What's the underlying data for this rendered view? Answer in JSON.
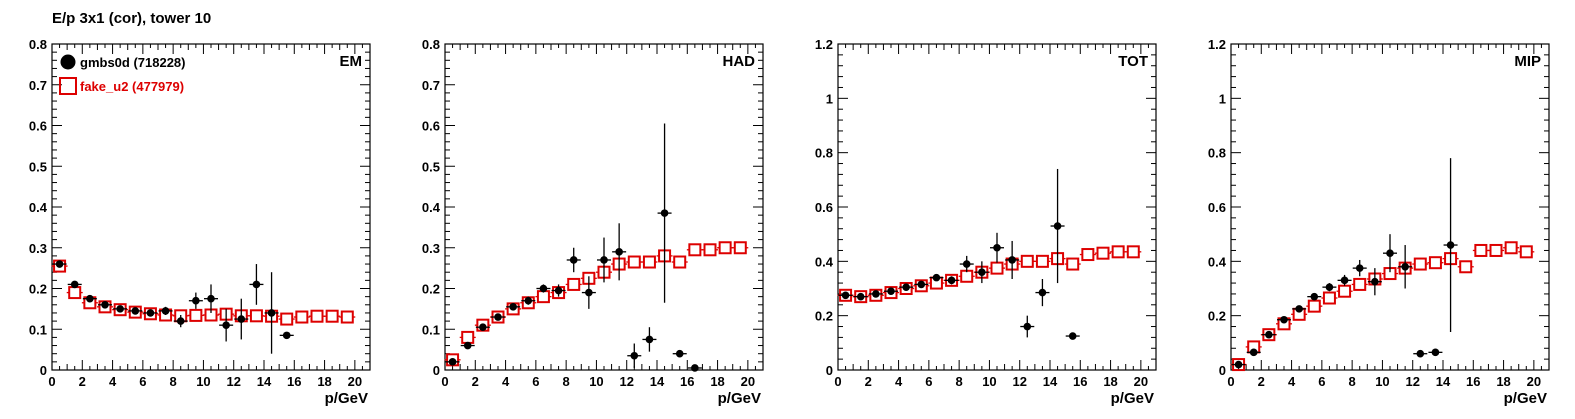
{
  "page": {
    "title": "E/p 3x1 (cor), tower 10"
  },
  "colors": {
    "data": "#000000",
    "mc": "#dd0000",
    "frame": "#000000",
    "background": "#ffffff"
  },
  "chart_data": [
    {
      "type": "scatter",
      "panel_label": "EM",
      "xlabel": "p/GeV",
      "xlim": [
        0,
        21
      ],
      "ylim": [
        0,
        0.8
      ],
      "xticks": [
        0,
        2,
        4,
        6,
        8,
        10,
        12,
        14,
        16,
        18,
        20
      ],
      "yticks": [
        0,
        0.1,
        0.2,
        0.3,
        0.4,
        0.5,
        0.6,
        0.7,
        0.8
      ],
      "ytick_labels": [
        "0",
        "0.1",
        "0.2",
        "0.3",
        "0.4",
        "0.5",
        "0.6",
        "0.7",
        "0.8"
      ],
      "legend": [
        {
          "label": "gmbs0d (718228)",
          "marker": "filled-circle",
          "color": "#000000"
        },
        {
          "label": "fake_u2 (477979)",
          "marker": "open-square",
          "color": "#dd0000"
        }
      ],
      "series": [
        {
          "name": "gmbs0d (718228)",
          "marker": "filled-circle",
          "color": "#000000",
          "x": [
            0.5,
            1.5,
            2.5,
            3.5,
            4.5,
            5.5,
            6.5,
            7.5,
            8.5,
            9.5,
            10.5,
            11.5,
            12.5,
            13.5,
            14.5,
            15.5
          ],
          "y": [
            0.26,
            0.21,
            0.175,
            0.16,
            0.15,
            0.145,
            0.14,
            0.145,
            0.12,
            0.17,
            0.175,
            0.11,
            0.125,
            0.21,
            0.14,
            0.085
          ],
          "yerr": [
            0.005,
            0.005,
            0.005,
            0.005,
            0.005,
            0.006,
            0.008,
            0.01,
            0.015,
            0.02,
            0.035,
            0.04,
            0.05,
            0.05,
            0.1,
            0.0
          ]
        },
        {
          "name": "fake_u2 (477979)",
          "marker": "open-square",
          "color": "#dd0000",
          "x": [
            0.5,
            1.5,
            2.5,
            3.5,
            4.5,
            5.5,
            6.5,
            7.5,
            8.5,
            9.5,
            10.5,
            11.5,
            12.5,
            13.5,
            14.5,
            15.5,
            16.5,
            17.5,
            18.5,
            19.5
          ],
          "y": [
            0.255,
            0.19,
            0.165,
            0.155,
            0.148,
            0.142,
            0.138,
            0.135,
            0.133,
            0.134,
            0.135,
            0.137,
            0.133,
            0.133,
            0.132,
            0.125,
            0.13,
            0.132,
            0.132,
            0.13
          ]
        }
      ]
    },
    {
      "type": "scatter",
      "panel_label": "HAD",
      "xlabel": "p/GeV",
      "xlim": [
        0,
        21
      ],
      "ylim": [
        0,
        0.8
      ],
      "xticks": [
        0,
        2,
        4,
        6,
        8,
        10,
        12,
        14,
        16,
        18,
        20
      ],
      "yticks": [
        0,
        0.1,
        0.2,
        0.3,
        0.4,
        0.5,
        0.6,
        0.7,
        0.8
      ],
      "ytick_labels": [
        "0",
        "0.1",
        "0.2",
        "0.3",
        "0.4",
        "0.5",
        "0.6",
        "0.7",
        "0.8"
      ],
      "series": [
        {
          "name": "gmbs0d (718228)",
          "marker": "filled-circle",
          "color": "#000000",
          "x": [
            0.5,
            1.5,
            2.5,
            3.5,
            4.5,
            5.5,
            6.5,
            7.5,
            8.5,
            9.5,
            10.5,
            11.5,
            12.5,
            13.5,
            14.5,
            15.5,
            16.5
          ],
          "y": [
            0.02,
            0.06,
            0.105,
            0.13,
            0.155,
            0.17,
            0.2,
            0.195,
            0.27,
            0.19,
            0.27,
            0.29,
            0.035,
            0.075,
            0.385,
            0.04,
            0.005
          ],
          "yerr": [
            0.005,
            0.005,
            0.006,
            0.006,
            0.008,
            0.01,
            0.01,
            0.015,
            0.03,
            0.04,
            0.055,
            0.07,
            0.03,
            0.03,
            0.22,
            0.0,
            0.0
          ]
        },
        {
          "name": "fake_u2 (477979)",
          "marker": "open-square",
          "color": "#dd0000",
          "x": [
            0.5,
            1.5,
            2.5,
            3.5,
            4.5,
            5.5,
            6.5,
            7.5,
            8.5,
            9.5,
            10.5,
            11.5,
            12.5,
            13.5,
            14.5,
            15.5,
            16.5,
            17.5,
            18.5,
            19.5
          ],
          "y": [
            0.025,
            0.08,
            0.11,
            0.13,
            0.15,
            0.165,
            0.18,
            0.19,
            0.21,
            0.225,
            0.24,
            0.26,
            0.265,
            0.265,
            0.28,
            0.265,
            0.295,
            0.295,
            0.3,
            0.3
          ]
        }
      ]
    },
    {
      "type": "scatter",
      "panel_label": "TOT",
      "xlabel": "p/GeV",
      "xlim": [
        0,
        21
      ],
      "ylim": [
        0,
        1.2
      ],
      "xticks": [
        0,
        2,
        4,
        6,
        8,
        10,
        12,
        14,
        16,
        18,
        20
      ],
      "yticks": [
        0,
        0.2,
        0.4,
        0.6,
        0.8,
        1.0,
        1.2
      ],
      "ytick_labels": [
        "0",
        "0.2",
        "0.4",
        "0.6",
        "0.8",
        "1",
        "1.2"
      ],
      "series": [
        {
          "name": "gmbs0d (718228)",
          "marker": "filled-circle",
          "color": "#000000",
          "x": [
            0.5,
            1.5,
            2.5,
            3.5,
            4.5,
            5.5,
            6.5,
            7.5,
            8.5,
            9.5,
            10.5,
            11.5,
            12.5,
            13.5,
            14.5,
            15.5
          ],
          "y": [
            0.275,
            0.27,
            0.28,
            0.29,
            0.305,
            0.315,
            0.34,
            0.33,
            0.39,
            0.36,
            0.45,
            0.405,
            0.16,
            0.285,
            0.53,
            0.125
          ],
          "yerr": [
            0.005,
            0.005,
            0.006,
            0.006,
            0.008,
            0.01,
            0.01,
            0.015,
            0.03,
            0.04,
            0.055,
            0.07,
            0.04,
            0.05,
            0.21,
            0.0
          ]
        },
        {
          "name": "fake_u2 (477979)",
          "marker": "open-square",
          "color": "#dd0000",
          "x": [
            0.5,
            1.5,
            2.5,
            3.5,
            4.5,
            5.5,
            6.5,
            7.5,
            8.5,
            9.5,
            10.5,
            11.5,
            12.5,
            13.5,
            14.5,
            15.5,
            16.5,
            17.5,
            18.5,
            19.5
          ],
          "y": [
            0.275,
            0.27,
            0.275,
            0.285,
            0.3,
            0.31,
            0.32,
            0.33,
            0.345,
            0.36,
            0.375,
            0.39,
            0.4,
            0.4,
            0.41,
            0.39,
            0.425,
            0.43,
            0.435,
            0.435
          ]
        }
      ]
    },
    {
      "type": "scatter",
      "panel_label": "MIP",
      "xlabel": "p/GeV",
      "xlim": [
        0,
        21
      ],
      "ylim": [
        0,
        1.2
      ],
      "xticks": [
        0,
        2,
        4,
        6,
        8,
        10,
        12,
        14,
        16,
        18,
        20
      ],
      "yticks": [
        0,
        0.2,
        0.4,
        0.6,
        0.8,
        1.0,
        1.2
      ],
      "ytick_labels": [
        "0",
        "0.2",
        "0.4",
        "0.6",
        "0.8",
        "1",
        "1.2"
      ],
      "series": [
        {
          "name": "gmbs0d (718228)",
          "marker": "filled-circle",
          "color": "#000000",
          "x": [
            0.5,
            1.5,
            2.5,
            3.5,
            4.5,
            5.5,
            6.5,
            7.5,
            8.5,
            9.5,
            10.5,
            11.5,
            12.5,
            13.5,
            14.5
          ],
          "y": [
            0.02,
            0.065,
            0.13,
            0.185,
            0.225,
            0.27,
            0.305,
            0.33,
            0.375,
            0.325,
            0.43,
            0.38,
            0.06,
            0.065,
            0.46
          ],
          "yerr": [
            0.005,
            0.005,
            0.006,
            0.008,
            0.01,
            0.01,
            0.015,
            0.02,
            0.03,
            0.05,
            0.07,
            0.08,
            0.0,
            0.0,
            0.32
          ]
        },
        {
          "name": "fake_u2 (477979)",
          "marker": "open-square",
          "color": "#dd0000",
          "x": [
            0.5,
            1.5,
            2.5,
            3.5,
            4.5,
            5.5,
            6.5,
            7.5,
            8.5,
            9.5,
            10.5,
            11.5,
            12.5,
            13.5,
            14.5,
            15.5,
            16.5,
            17.5,
            18.5,
            19.5
          ],
          "y": [
            0.02,
            0.085,
            0.13,
            0.17,
            0.205,
            0.235,
            0.265,
            0.29,
            0.315,
            0.335,
            0.355,
            0.375,
            0.39,
            0.395,
            0.41,
            0.38,
            0.44,
            0.44,
            0.45,
            0.435
          ]
        }
      ]
    }
  ]
}
